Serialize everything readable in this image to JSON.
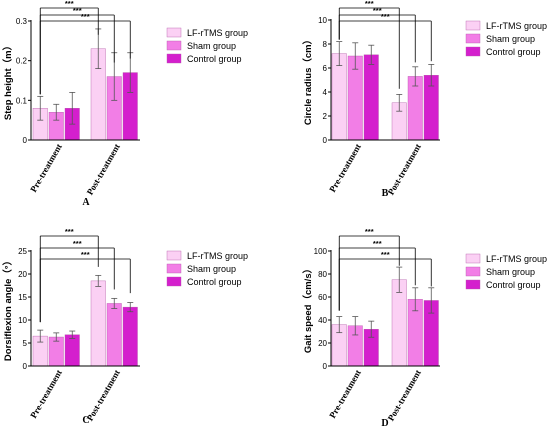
{
  "colors": {
    "LF-rTMS group": "#fbd0f4",
    "Sham group": "#f27ee6",
    "Control group": "#d41fcd",
    "axis": "#000000",
    "errorbar": "#555555"
  },
  "chart_data": [
    {
      "panel": "A",
      "type": "bar",
      "ylabel": "Step height（m）",
      "ylim": [
        0,
        0.3
      ],
      "yticks": [
        0.0,
        0.1,
        0.2,
        0.3
      ],
      "categories": [
        "Pre-treatment",
        "Post-treatment"
      ],
      "series": [
        {
          "name": "LF-rTMS group",
          "values": [
            0.08,
            0.23
          ],
          "errors": [
            0.03,
            0.05
          ]
        },
        {
          "name": "Sham group",
          "values": [
            0.07,
            0.16
          ],
          "errors": [
            0.02,
            0.06
          ]
        },
        {
          "name": "Control group",
          "values": [
            0.08,
            0.17
          ],
          "errors": [
            0.04,
            0.05
          ]
        }
      ],
      "significance": [
        "***",
        "***",
        "***"
      ],
      "legend_position": "right"
    },
    {
      "panel": "B",
      "type": "bar",
      "ylabel": "Circle radius（cm）",
      "ylim": [
        0,
        10
      ],
      "yticks": [
        0,
        2,
        4,
        6,
        8,
        10
      ],
      "categories": [
        "Pre-treatment",
        "Post-treatment"
      ],
      "series": [
        {
          "name": "LF-rTMS group",
          "values": [
            7.2,
            3.1
          ],
          "errors": [
            1.0,
            0.7
          ]
        },
        {
          "name": "Sham group",
          "values": [
            7.0,
            5.3
          ],
          "errors": [
            1.1,
            0.8
          ]
        },
        {
          "name": "Control group",
          "values": [
            7.1,
            5.4
          ],
          "errors": [
            0.8,
            0.9
          ]
        }
      ],
      "significance": [
        "***",
        "***",
        "***"
      ],
      "legend_position": "right"
    },
    {
      "panel": "C",
      "type": "bar",
      "ylabel": "Dorsiflexion angle（°）",
      "ylim": [
        0,
        25
      ],
      "yticks": [
        0,
        5,
        10,
        15,
        20,
        25
      ],
      "categories": [
        "Pre-treatment",
        "Post-treatment"
      ],
      "series": [
        {
          "name": "LF-rTMS group",
          "values": [
            6.5,
            18.5
          ],
          "errors": [
            1.3,
            1.2
          ]
        },
        {
          "name": "Sham group",
          "values": [
            6.3,
            13.6
          ],
          "errors": [
            0.9,
            1.1
          ]
        },
        {
          "name": "Control group",
          "values": [
            6.8,
            12.8
          ],
          "errors": [
            0.8,
            1.0
          ]
        }
      ],
      "significance": [
        "***",
        "***",
        "***"
      ],
      "legend_position": "right"
    },
    {
      "panel": "D",
      "type": "bar",
      "ylabel": "Gait speed（cm/s）",
      "ylim": [
        0,
        100
      ],
      "yticks": [
        0,
        20,
        40,
        60,
        80,
        100
      ],
      "categories": [
        "Pre-treatment",
        "Post-treatment"
      ],
      "series": [
        {
          "name": "LF-rTMS group",
          "values": [
            36,
            75
          ],
          "errors": [
            7,
            11
          ]
        },
        {
          "name": "Sham group",
          "values": [
            35,
            58
          ],
          "errors": [
            8,
            10
          ]
        },
        {
          "name": "Control group",
          "values": [
            32,
            57
          ],
          "errors": [
            7,
            11
          ]
        }
      ],
      "significance": [
        "***",
        "***",
        "***"
      ],
      "legend_position": "right"
    }
  ]
}
